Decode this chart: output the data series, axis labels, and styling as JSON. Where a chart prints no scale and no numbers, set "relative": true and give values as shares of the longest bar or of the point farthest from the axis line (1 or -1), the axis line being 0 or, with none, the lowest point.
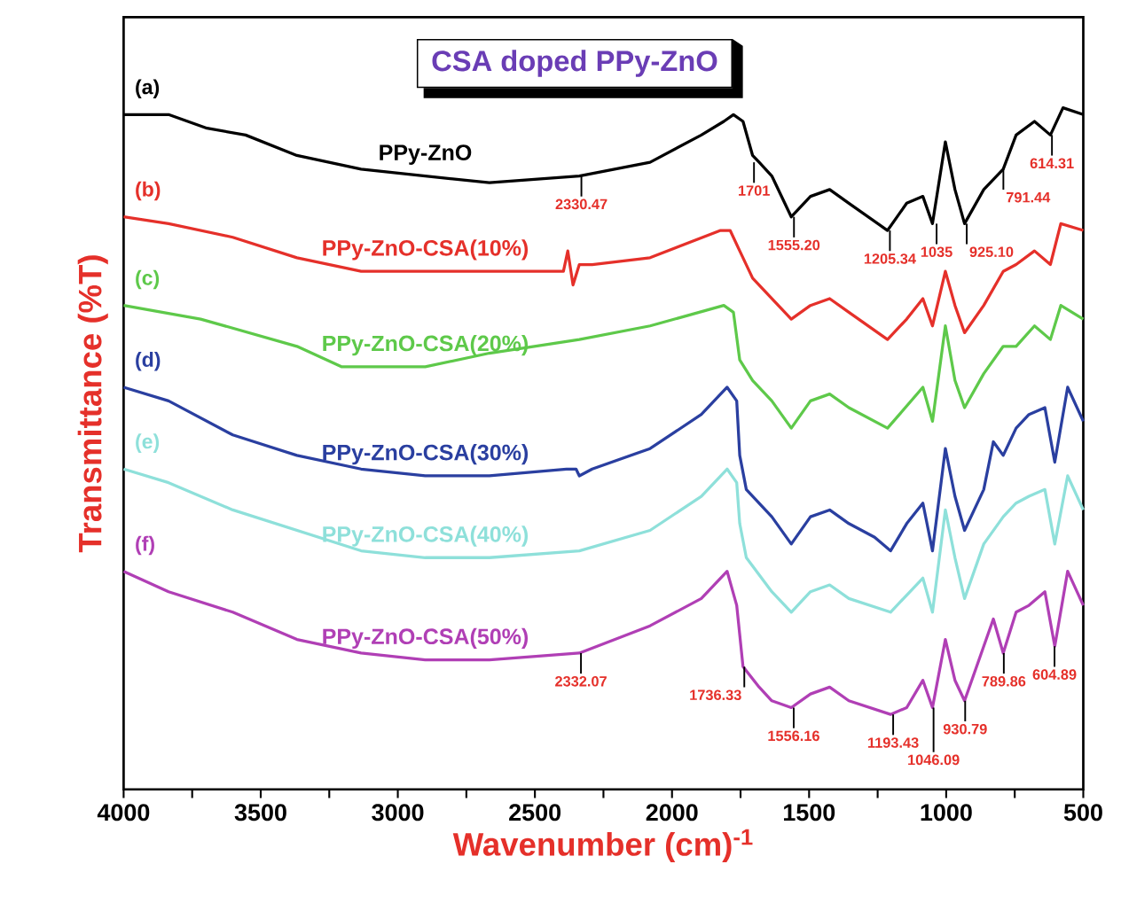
{
  "chart_data": {
    "type": "line",
    "relative": true,
    "title": "CSA doped PPy-ZnO",
    "xlabel": "Wavenumber (cm)$^{-1}$",
    "ylabel": "Transmittance (%T)",
    "xlim": [
      4000,
      500
    ],
    "xticks": [
      4000,
      {
        "value": 3750,
        "label": null
      },
      3500,
      {
        "value": 3250,
        "label": null
      },
      3000,
      {
        "value": 2750,
        "label": null
      },
      2500,
      {
        "value": 2250,
        "label": null
      },
      2000,
      {
        "value": 1750,
        "label": null
      },
      1500,
      {
        "value": 1250,
        "label": null
      },
      1000,
      {
        "value": 750,
        "label": null
      },
      500
    ],
    "tick_labels": "x",
    "series": [
      {
        "name": "PPy-ZnO",
        "color": "#000000",
        "x": [
          4000,
          3836,
          3766,
          3696,
          3555,
          3368,
          3134,
          2900,
          2666,
          2338,
          2080,
          1893,
          1811,
          1776,
          1741,
          1706,
          1682,
          1636,
          1565,
          1495,
          1425,
          1355,
          1214,
          1144,
          1085,
          1050,
          1003,
          968,
          933,
          863,
          792,
          745,
          678,
          620,
          574,
          500
        ],
        "values": [
          0.99,
          0.99,
          0.98,
          0.97,
          0.96,
          0.93,
          0.91,
          0.9,
          0.89,
          0.9,
          0.92,
          0.96,
          0.98,
          0.99,
          0.98,
          0.93,
          0.92,
          0.9,
          0.84,
          0.87,
          0.88,
          0.86,
          0.82,
          0.86,
          0.87,
          0.83,
          0.95,
          0.88,
          0.83,
          0.88,
          0.91,
          0.96,
          0.98,
          0.96,
          1.0,
          0.99
        ]
      },
      {
        "name": "PPy-ZnO-CSA(10%)",
        "color": "#e5302a",
        "x": [
          4000,
          3836,
          3602,
          3368,
          3134,
          2900,
          2666,
          2396,
          2380,
          2361,
          2338,
          2291,
          2080,
          1823,
          1788,
          1753,
          1706,
          1636,
          1565,
          1495,
          1425,
          1355,
          1214,
          1144,
          1085,
          1050,
          1003,
          968,
          933,
          863,
          792,
          745,
          678,
          620,
          582,
          500
        ],
        "values": [
          0.84,
          0.83,
          0.81,
          0.78,
          0.76,
          0.76,
          0.76,
          0.76,
          0.79,
          0.74,
          0.77,
          0.77,
          0.78,
          0.82,
          0.82,
          0.79,
          0.75,
          0.72,
          0.69,
          0.71,
          0.72,
          0.7,
          0.66,
          0.69,
          0.72,
          0.68,
          0.76,
          0.71,
          0.67,
          0.71,
          0.76,
          0.77,
          0.79,
          0.77,
          0.83,
          0.82
        ]
      },
      {
        "name": "PPy-ZnO-CSA(20%)",
        "color": "#5ec94a",
        "x": [
          4000,
          3719,
          3368,
          3204,
          2900,
          2666,
          2338,
          2080,
          1811,
          1776,
          1753,
          1706,
          1636,
          1565,
          1495,
          1425,
          1355,
          1214,
          1085,
          1050,
          1003,
          968,
          933,
          863,
          792,
          745,
          678,
          620,
          582,
          500
        ],
        "values": [
          0.71,
          0.69,
          0.65,
          0.62,
          0.62,
          0.64,
          0.66,
          0.68,
          0.71,
          0.7,
          0.63,
          0.6,
          0.57,
          0.53,
          0.57,
          0.58,
          0.56,
          0.53,
          0.59,
          0.54,
          0.68,
          0.6,
          0.56,
          0.61,
          0.65,
          0.65,
          0.68,
          0.66,
          0.71,
          0.69
        ]
      },
      {
        "name": "PPy-ZnO-CSA(30%)",
        "color": "#2a3fa0",
        "x": [
          4000,
          3836,
          3602,
          3368,
          3134,
          2900,
          2666,
          2385,
          2350,
          2338,
          2291,
          2080,
          1893,
          1799,
          1764,
          1753,
          1729,
          1636,
          1565,
          1495,
          1425,
          1355,
          1261,
          1203,
          1144,
          1085,
          1050,
          1003,
          968,
          933,
          863,
          828,
          792,
          745,
          698,
          640,
          604,
          557,
          500
        ],
        "values": [
          0.59,
          0.57,
          0.52,
          0.49,
          0.47,
          0.46,
          0.46,
          0.47,
          0.47,
          0.46,
          0.47,
          0.5,
          0.55,
          0.59,
          0.57,
          0.49,
          0.44,
          0.4,
          0.36,
          0.4,
          0.41,
          0.39,
          0.37,
          0.35,
          0.39,
          0.42,
          0.35,
          0.5,
          0.43,
          0.38,
          0.44,
          0.51,
          0.49,
          0.53,
          0.55,
          0.56,
          0.48,
          0.59,
          0.54
        ]
      },
      {
        "name": "PPy-ZnO-CSA(40%)",
        "color": "#8ee0da",
        "x": [
          4000,
          3836,
          3602,
          3368,
          3134,
          2900,
          2666,
          2338,
          2080,
          1893,
          1799,
          1764,
          1753,
          1729,
          1636,
          1565,
          1495,
          1425,
          1355,
          1203,
          1085,
          1050,
          1003,
          968,
          933,
          863,
          792,
          745,
          698,
          640,
          604,
          557,
          500
        ],
        "values": [
          0.47,
          0.45,
          0.41,
          0.38,
          0.35,
          0.34,
          0.34,
          0.35,
          0.38,
          0.43,
          0.47,
          0.45,
          0.39,
          0.34,
          0.29,
          0.26,
          0.29,
          0.3,
          0.28,
          0.26,
          0.31,
          0.26,
          0.41,
          0.34,
          0.28,
          0.36,
          0.4,
          0.42,
          0.43,
          0.44,
          0.36,
          0.46,
          0.41
        ]
      },
      {
        "name": "PPy-ZnO-CSA(50%)",
        "color": "#b03fb5",
        "x": [
          4000,
          3836,
          3602,
          3368,
          3134,
          2900,
          2666,
          2338,
          2080,
          1893,
          1799,
          1764,
          1741,
          1682,
          1636,
          1565,
          1495,
          1425,
          1355,
          1203,
          1144,
          1085,
          1050,
          1003,
          968,
          933,
          863,
          828,
          792,
          745,
          698,
          640,
          604,
          557,
          500
        ],
        "values": [
          0.32,
          0.29,
          0.26,
          0.22,
          0.2,
          0.19,
          0.19,
          0.2,
          0.24,
          0.28,
          0.32,
          0.27,
          0.18,
          0.15,
          0.13,
          0.12,
          0.14,
          0.15,
          0.13,
          0.11,
          0.12,
          0.16,
          0.12,
          0.22,
          0.16,
          0.13,
          0.21,
          0.25,
          0.2,
          0.26,
          0.27,
          0.29,
          0.21,
          0.32,
          0.27
        ]
      }
    ],
    "annotations": [
      "(a)",
      "(b)",
      "(c)",
      "(d)",
      "(e)",
      "(f)",
      {
        "text": "2330.47",
        "x": 2330.47,
        "y": 0.9
      },
      {
        "text": "1701",
        "x": 1701,
        "y": 0.92
      },
      {
        "text": "1555.20",
        "x": 1555.2,
        "y": 0.84
      },
      {
        "text": "1205.34",
        "x": 1205.34,
        "y": 0.82
      },
      {
        "text": "1035",
        "x": 1035,
        "y": 0.83
      },
      {
        "text": "925.10",
        "x": 925.1,
        "y": 0.83
      },
      {
        "text": "791.44",
        "x": 791.44,
        "y": 0.91
      },
      {
        "text": "614.31",
        "x": 614.31,
        "y": 0.96
      },
      {
        "text": "2332.07",
        "x": 2332.07,
        "y": 0.2
      },
      {
        "text": "1736.33",
        "x": 1736.33,
        "y": 0.18
      },
      {
        "text": "1556.16",
        "x": 1556.16,
        "y": 0.12
      },
      {
        "text": "1193.43",
        "x": 1193.43,
        "y": 0.11
      },
      {
        "text": "1046.09",
        "x": 1046.09,
        "y": 0.12
      },
      {
        "text": "930.79",
        "x": 930.79,
        "y": 0.13
      },
      {
        "text": "789.86",
        "x": 789.86,
        "y": 0.2
      },
      {
        "text": "604.89",
        "x": 604.89,
        "y": 0.21
      }
    ]
  }
}
